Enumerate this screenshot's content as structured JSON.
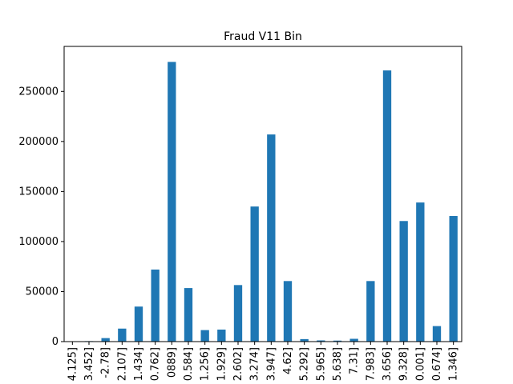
{
  "chart_data": {
    "type": "bar",
    "title": "Fraud V11 Bin",
    "xlabel": "",
    "ylabel": "",
    "ylim": [
      0,
      295000
    ],
    "yticks": [
      0,
      50000,
      100000,
      150000,
      200000,
      250000
    ],
    "ytick_labels": [
      "0",
      "50000",
      "100000",
      "150000",
      "200000",
      "250000"
    ],
    "grid": false,
    "legend": "none",
    "bar_color": "#1f77b4",
    "categories": [
      "4.125]",
      "3.452]",
      "-2.78]",
      "2.107]",
      "1.434]",
      "0.762]",
      "0889]",
      "0.584]",
      "1.256]",
      "1.929]",
      "2.602]",
      "3.274]",
      "3.947]",
      "4.62]",
      "5.292]",
      "5.965]",
      "5.638]",
      "7.31]",
      "7.983]",
      "3.656]",
      "9.328]",
      "0.001]",
      "0.674]",
      "1.346]"
    ],
    "values": [
      300,
      500,
      3500,
      13000,
      35000,
      72000,
      279500,
      53500,
      11500,
      12000,
      56500,
      135000,
      207000,
      60500,
      2500,
      1200,
      1000,
      2800,
      60500,
      271000,
      120500,
      139000,
      15500,
      125500
    ]
  }
}
